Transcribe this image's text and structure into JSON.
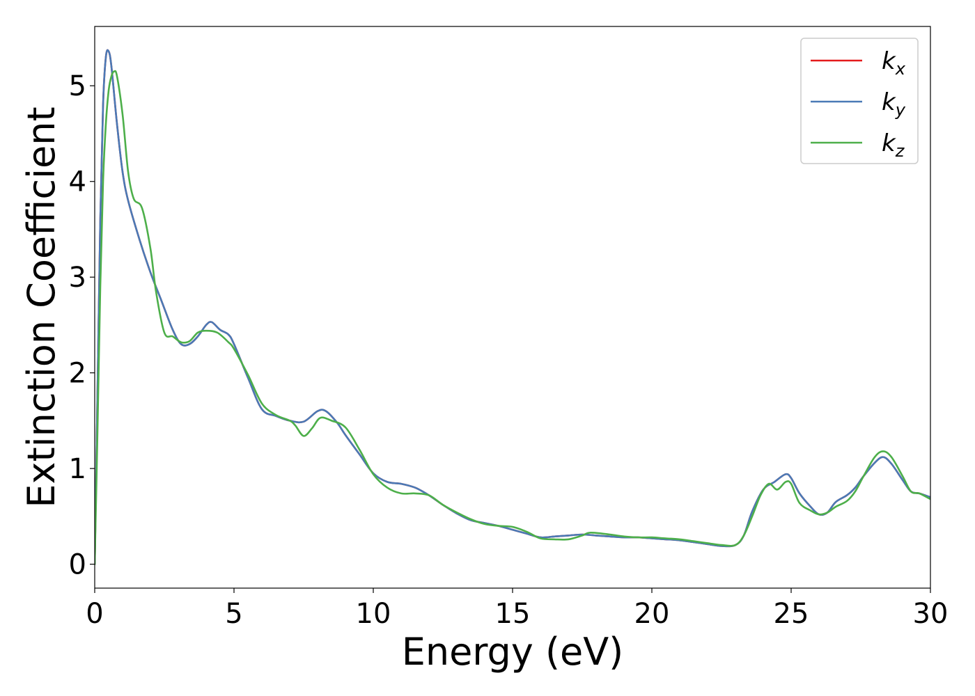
{
  "chart_data": {
    "type": "line",
    "title": "",
    "xlabel": "Energy (eV)",
    "ylabel": "Extinction Coefficient",
    "xlim": [
      0,
      30
    ],
    "ylim": [
      -0.25,
      5.62
    ],
    "xticks": [
      0,
      5,
      10,
      15,
      20,
      25,
      30
    ],
    "yticks": [
      0,
      1,
      2,
      3,
      4,
      5
    ],
    "grid": false,
    "legend_position": "top-right",
    "series": [
      {
        "name": "k",
        "subscript": "x",
        "color": "#e41a1c",
        "x": [
          0,
          0.1,
          0.2,
          0.3,
          0.4,
          0.5,
          0.6,
          0.8,
          1.0,
          1.2,
          1.6,
          2.0,
          2.4,
          2.8,
          3.1,
          3.4,
          3.7,
          4.0,
          4.2,
          4.5,
          4.8,
          5.0,
          5.5,
          6.0,
          6.5,
          7.0,
          7.5,
          8.0,
          8.3,
          8.7,
          9.0,
          9.5,
          10.0,
          10.5,
          11.0,
          11.5,
          12.0,
          12.5,
          13.0,
          13.5,
          14.0,
          14.5,
          15.0,
          15.5,
          16.0,
          16.5,
          17.0,
          17.5,
          18.0,
          18.5,
          19.0,
          19.5,
          20.0,
          20.5,
          21.0,
          21.5,
          22.0,
          22.5,
          23.0,
          23.3,
          23.6,
          24.0,
          24.4,
          24.8,
          25.0,
          25.3,
          25.7,
          26.0,
          26.3,
          26.6,
          27.0,
          27.3,
          27.6,
          28.0,
          28.3,
          28.6,
          29.0,
          29.3,
          29.6,
          30.0
        ],
        "y": [
          0.0,
          1.8,
          3.6,
          4.8,
          5.3,
          5.36,
          5.2,
          4.6,
          4.1,
          3.8,
          3.4,
          3.05,
          2.75,
          2.45,
          2.3,
          2.3,
          2.38,
          2.5,
          2.53,
          2.45,
          2.4,
          2.3,
          1.95,
          1.62,
          1.55,
          1.5,
          1.49,
          1.6,
          1.6,
          1.48,
          1.35,
          1.15,
          0.95,
          0.86,
          0.84,
          0.8,
          0.72,
          0.62,
          0.53,
          0.46,
          0.43,
          0.4,
          0.36,
          0.32,
          0.28,
          0.29,
          0.3,
          0.31,
          0.3,
          0.29,
          0.28,
          0.28,
          0.27,
          0.26,
          0.25,
          0.23,
          0.21,
          0.19,
          0.2,
          0.3,
          0.55,
          0.78,
          0.86,
          0.94,
          0.9,
          0.74,
          0.6,
          0.52,
          0.54,
          0.65,
          0.72,
          0.8,
          0.92,
          1.06,
          1.12,
          1.05,
          0.88,
          0.76,
          0.74,
          0.7
        ]
      },
      {
        "name": "k",
        "subscript": "y",
        "color": "#4a7ab6",
        "x": [
          0,
          0.1,
          0.2,
          0.3,
          0.4,
          0.5,
          0.6,
          0.8,
          1.0,
          1.2,
          1.6,
          2.0,
          2.4,
          2.8,
          3.1,
          3.4,
          3.7,
          4.0,
          4.2,
          4.5,
          4.8,
          5.0,
          5.5,
          6.0,
          6.5,
          7.0,
          7.5,
          8.0,
          8.3,
          8.7,
          9.0,
          9.5,
          10.0,
          10.5,
          11.0,
          11.5,
          12.0,
          12.5,
          13.0,
          13.5,
          14.0,
          14.5,
          15.0,
          15.5,
          16.0,
          16.5,
          17.0,
          17.5,
          18.0,
          18.5,
          19.0,
          19.5,
          20.0,
          20.5,
          21.0,
          21.5,
          22.0,
          22.5,
          23.0,
          23.3,
          23.6,
          24.0,
          24.4,
          24.8,
          25.0,
          25.3,
          25.7,
          26.0,
          26.3,
          26.6,
          27.0,
          27.3,
          27.6,
          28.0,
          28.3,
          28.6,
          29.0,
          29.3,
          29.6,
          30.0
        ],
        "y": [
          0.0,
          1.8,
          3.6,
          4.8,
          5.3,
          5.36,
          5.2,
          4.6,
          4.1,
          3.8,
          3.4,
          3.05,
          2.75,
          2.45,
          2.3,
          2.3,
          2.38,
          2.5,
          2.53,
          2.45,
          2.4,
          2.3,
          1.95,
          1.62,
          1.55,
          1.5,
          1.49,
          1.6,
          1.6,
          1.48,
          1.35,
          1.15,
          0.95,
          0.86,
          0.84,
          0.8,
          0.72,
          0.62,
          0.53,
          0.46,
          0.43,
          0.4,
          0.36,
          0.32,
          0.28,
          0.29,
          0.3,
          0.31,
          0.3,
          0.29,
          0.28,
          0.28,
          0.27,
          0.26,
          0.25,
          0.23,
          0.21,
          0.19,
          0.2,
          0.3,
          0.55,
          0.78,
          0.86,
          0.94,
          0.9,
          0.74,
          0.6,
          0.52,
          0.54,
          0.65,
          0.72,
          0.8,
          0.92,
          1.06,
          1.12,
          1.05,
          0.88,
          0.76,
          0.74,
          0.7
        ]
      },
      {
        "name": "k",
        "subscript": "z",
        "color": "#4daf4a",
        "x": [
          0,
          0.1,
          0.2,
          0.3,
          0.4,
          0.5,
          0.6,
          0.7,
          0.8,
          1.0,
          1.2,
          1.4,
          1.7,
          2.0,
          2.2,
          2.5,
          2.8,
          3.1,
          3.4,
          3.7,
          4.0,
          4.4,
          4.8,
          5.0,
          5.5,
          6.0,
          6.5,
          7.0,
          7.2,
          7.5,
          7.8,
          8.1,
          8.5,
          9.0,
          9.5,
          10.0,
          10.5,
          11.0,
          11.5,
          12.0,
          12.5,
          13.0,
          13.5,
          14.0,
          14.5,
          15.0,
          15.5,
          16.0,
          16.5,
          17.0,
          17.5,
          17.8,
          18.5,
          19.0,
          19.5,
          20.0,
          20.5,
          21.0,
          21.5,
          22.0,
          22.5,
          23.0,
          23.3,
          23.6,
          23.9,
          24.2,
          24.5,
          24.8,
          25.0,
          25.3,
          25.7,
          26.0,
          26.3,
          26.6,
          27.0,
          27.3,
          27.6,
          28.0,
          28.3,
          28.6,
          29.0,
          29.3,
          29.6,
          30.0
        ],
        "y": [
          0.0,
          1.4,
          2.9,
          4.0,
          4.6,
          4.95,
          5.1,
          5.15,
          5.1,
          4.7,
          4.1,
          3.82,
          3.72,
          3.3,
          2.85,
          2.42,
          2.38,
          2.32,
          2.33,
          2.42,
          2.44,
          2.42,
          2.32,
          2.25,
          1.98,
          1.68,
          1.56,
          1.5,
          1.45,
          1.34,
          1.42,
          1.53,
          1.5,
          1.43,
          1.2,
          0.94,
          0.8,
          0.74,
          0.74,
          0.72,
          0.62,
          0.54,
          0.47,
          0.42,
          0.4,
          0.39,
          0.34,
          0.27,
          0.26,
          0.26,
          0.3,
          0.33,
          0.31,
          0.29,
          0.28,
          0.28,
          0.27,
          0.26,
          0.24,
          0.22,
          0.2,
          0.2,
          0.3,
          0.5,
          0.72,
          0.84,
          0.78,
          0.86,
          0.84,
          0.64,
          0.56,
          0.52,
          0.54,
          0.6,
          0.66,
          0.76,
          0.92,
          1.12,
          1.18,
          1.12,
          0.92,
          0.76,
          0.74,
          0.68
        ]
      }
    ]
  }
}
